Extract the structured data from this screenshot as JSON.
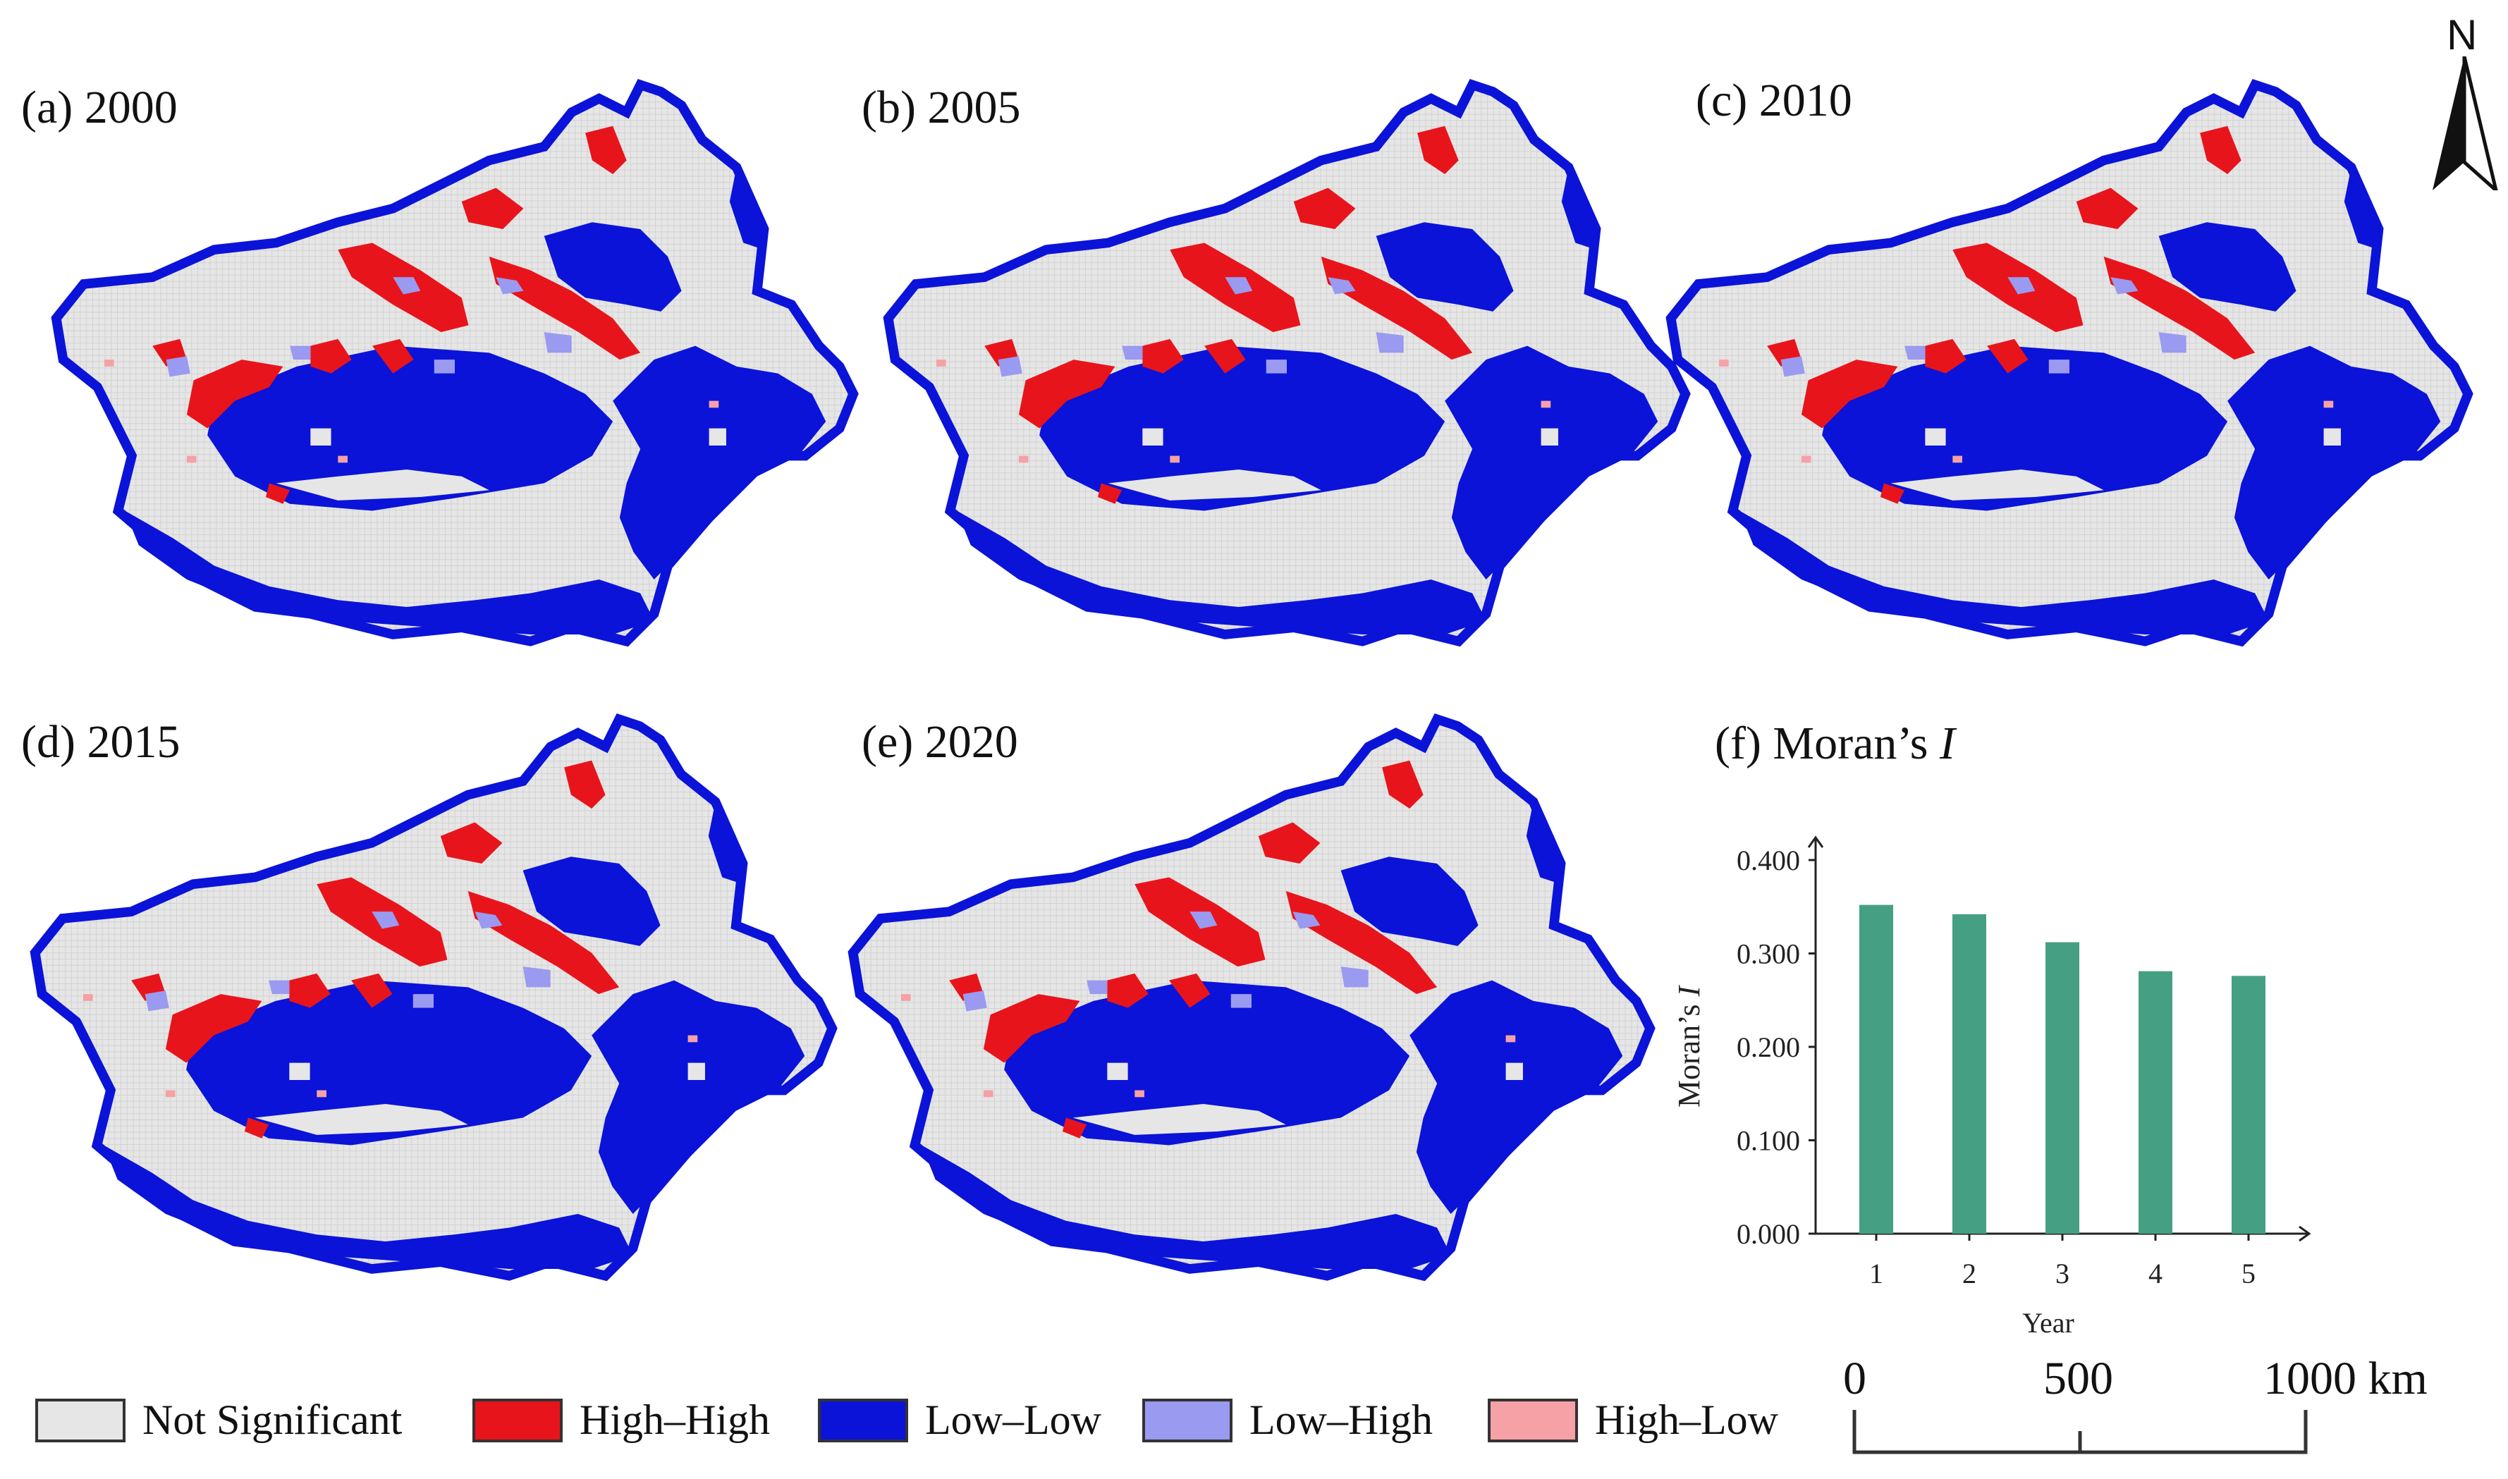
{
  "colors": {
    "not_significant": "#e6e6e6",
    "high_high": "#e8141c",
    "low_low": "#0b13d8",
    "low_high": "#9a9af0",
    "high_low": "#f6a1a6",
    "bar": "#45a083"
  },
  "panels": [
    {
      "label": "(a) 2000"
    },
    {
      "label": "(b) 2005"
    },
    {
      "label": "(c) 2010"
    },
    {
      "label": "(d) 2015"
    },
    {
      "label": "(e) 2020"
    }
  ],
  "chart_panel_label": {
    "prefix": "(f) Moran’s ",
    "italic": "I"
  },
  "north_arrow": {
    "letter": "N",
    "icon": "north-arrow-icon"
  },
  "legend": [
    {
      "label": "Not Significant",
      "color_key": "not_significant"
    },
    {
      "label": "High–High",
      "color_key": "high_high"
    },
    {
      "label": "Low–Low",
      "color_key": "low_low"
    },
    {
      "label": "Low–High",
      "color_key": "low_high"
    },
    {
      "label": "High–Low",
      "color_key": "high_low"
    }
  ],
  "scale_bar": {
    "labels": [
      "0",
      "500",
      "1000 km"
    ]
  },
  "chart_data": {
    "type": "bar",
    "categories": [
      "1",
      "2",
      "3",
      "4",
      "5"
    ],
    "values": [
      0.352,
      0.342,
      0.312,
      0.281,
      0.276
    ],
    "xlabel": "Year",
    "ylabel_prefix": "Moran’s ",
    "ylabel_italic": "I",
    "ylim": [
      0,
      0.4
    ],
    "yticks": [
      "0.000",
      "0.100",
      "0.200",
      "0.300",
      "0.400"
    ],
    "ytick_values": [
      0,
      0.1,
      0.2,
      0.3,
      0.4
    ]
  }
}
